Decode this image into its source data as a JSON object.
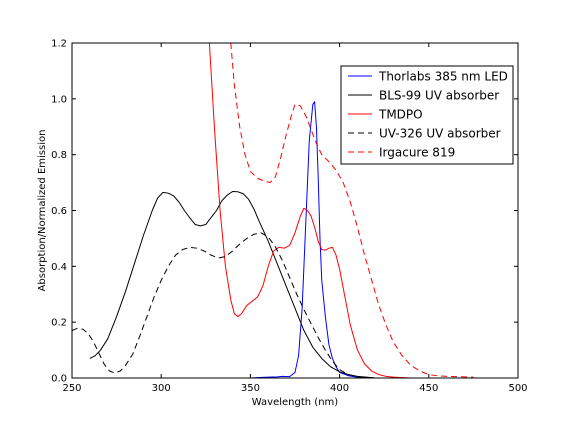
{
  "chart_data": {
    "type": "line",
    "xlabel": "Wavelength (nm)",
    "ylabel": "Absorption/Normalized Emission",
    "xlim": [
      250,
      500
    ],
    "ylim": [
      0.0,
      1.2
    ],
    "xticks": [
      250,
      300,
      350,
      400,
      450,
      500
    ],
    "xtick_labels": [
      "250",
      "300",
      "350",
      "400",
      "450",
      "500"
    ],
    "yticks": [
      0.0,
      0.2,
      0.4,
      0.6,
      0.8,
      1.0,
      1.2
    ],
    "ytick_labels": [
      "0.0",
      "0.2",
      "0.4",
      "0.6",
      "0.8",
      "1.0",
      "1.2"
    ],
    "grid": false,
    "legend_position": "upper-right",
    "series": [
      {
        "name": "Thorlabs 385 nm LED",
        "color": "#0000ff",
        "dash": "solid",
        "points": [
          [
            350,
            0.0
          ],
          [
            355,
            0.002
          ],
          [
            360,
            0.003
          ],
          [
            365,
            0.004
          ],
          [
            368,
            0.006
          ],
          [
            372,
            0.005
          ],
          [
            375,
            0.02
          ],
          [
            377,
            0.08
          ],
          [
            379,
            0.25
          ],
          [
            381,
            0.55
          ],
          [
            383,
            0.85
          ],
          [
            385,
            0.98
          ],
          [
            386,
            0.99
          ],
          [
            387,
            0.9
          ],
          [
            388,
            0.72
          ],
          [
            389,
            0.5
          ],
          [
            390,
            0.35
          ],
          [
            392,
            0.22
          ],
          [
            394,
            0.12
          ],
          [
            396,
            0.07
          ],
          [
            398,
            0.04
          ],
          [
            400,
            0.02
          ],
          [
            405,
            0.008
          ],
          [
            410,
            0.003
          ],
          [
            415,
            0.001
          ],
          [
            420,
            0.0
          ]
        ]
      },
      {
        "name": "BLS-99 UV absorber",
        "color": "#000000",
        "dash": "solid",
        "points": [
          [
            260,
            0.07
          ],
          [
            263,
            0.08
          ],
          [
            266,
            0.1
          ],
          [
            270,
            0.14
          ],
          [
            275,
            0.22
          ],
          [
            280,
            0.31
          ],
          [
            285,
            0.41
          ],
          [
            290,
            0.51
          ],
          [
            295,
            0.6
          ],
          [
            298,
            0.645
          ],
          [
            301,
            0.665
          ],
          [
            304,
            0.662
          ],
          [
            307,
            0.652
          ],
          [
            310,
            0.63
          ],
          [
            313,
            0.6
          ],
          [
            316,
            0.574
          ],
          [
            319,
            0.55
          ],
          [
            322,
            0.545
          ],
          [
            325,
            0.55
          ],
          [
            328,
            0.575
          ],
          [
            331,
            0.6
          ],
          [
            334,
            0.635
          ],
          [
            337,
            0.655
          ],
          [
            340,
            0.668
          ],
          [
            343,
            0.667
          ],
          [
            346,
            0.66
          ],
          [
            349,
            0.64
          ],
          [
            352,
            0.605
          ],
          [
            355,
            0.56
          ],
          [
            360,
            0.49
          ],
          [
            365,
            0.41
          ],
          [
            370,
            0.33
          ],
          [
            375,
            0.25
          ],
          [
            380,
            0.17
          ],
          [
            385,
            0.11
          ],
          [
            390,
            0.07
          ],
          [
            395,
            0.04
          ],
          [
            400,
            0.022
          ],
          [
            405,
            0.012
          ],
          [
            410,
            0.006
          ],
          [
            415,
            0.003
          ],
          [
            420,
            0.0
          ]
        ]
      },
      {
        "name": "TMDPO",
        "color": "#ff0000",
        "dash": "solid",
        "points": [
          [
            327,
            1.2
          ],
          [
            330,
            0.88
          ],
          [
            333,
            0.6
          ],
          [
            336,
            0.4
          ],
          [
            339,
            0.28
          ],
          [
            341,
            0.23
          ],
          [
            343,
            0.22
          ],
          [
            345,
            0.23
          ],
          [
            348,
            0.26
          ],
          [
            351,
            0.275
          ],
          [
            354,
            0.29
          ],
          [
            357,
            0.33
          ],
          [
            360,
            0.4
          ],
          [
            363,
            0.455
          ],
          [
            366,
            0.468
          ],
          [
            369,
            0.465
          ],
          [
            372,
            0.475
          ],
          [
            375,
            0.52
          ],
          [
            378,
            0.58
          ],
          [
            380,
            0.608
          ],
          [
            382,
            0.6
          ],
          [
            384,
            0.58
          ],
          [
            386,
            0.54
          ],
          [
            388,
            0.49
          ],
          [
            390,
            0.46
          ],
          [
            392,
            0.458
          ],
          [
            394,
            0.465
          ],
          [
            396,
            0.468
          ],
          [
            398,
            0.44
          ],
          [
            400,
            0.39
          ],
          [
            403,
            0.29
          ],
          [
            406,
            0.19
          ],
          [
            410,
            0.1
          ],
          [
            414,
            0.05
          ],
          [
            418,
            0.025
          ],
          [
            422,
            0.012
          ],
          [
            426,
            0.006
          ],
          [
            430,
            0.003
          ],
          [
            440,
            0.0
          ]
        ]
      },
      {
        "name": "UV-326 UV absorber",
        "color": "#000000",
        "dash": "dashed",
        "points": [
          [
            250,
            0.17
          ],
          [
            253,
            0.178
          ],
          [
            256,
            0.175
          ],
          [
            259,
            0.16
          ],
          [
            262,
            0.13
          ],
          [
            265,
            0.09
          ],
          [
            268,
            0.05
          ],
          [
            271,
            0.025
          ],
          [
            274,
            0.018
          ],
          [
            277,
            0.025
          ],
          [
            280,
            0.045
          ],
          [
            284,
            0.085
          ],
          [
            288,
            0.15
          ],
          [
            292,
            0.22
          ],
          [
            296,
            0.29
          ],
          [
            300,
            0.35
          ],
          [
            304,
            0.4
          ],
          [
            308,
            0.44
          ],
          [
            312,
            0.46
          ],
          [
            316,
            0.468
          ],
          [
            320,
            0.465
          ],
          [
            324,
            0.455
          ],
          [
            328,
            0.44
          ],
          [
            332,
            0.43
          ],
          [
            336,
            0.435
          ],
          [
            340,
            0.455
          ],
          [
            344,
            0.48
          ],
          [
            348,
            0.5
          ],
          [
            352,
            0.515
          ],
          [
            356,
            0.52
          ],
          [
            360,
            0.505
          ],
          [
            364,
            0.47
          ],
          [
            368,
            0.42
          ],
          [
            372,
            0.36
          ],
          [
            376,
            0.3
          ],
          [
            380,
            0.245
          ],
          [
            384,
            0.195
          ],
          [
            388,
            0.145
          ],
          [
            392,
            0.1
          ],
          [
            396,
            0.06
          ],
          [
            400,
            0.03
          ],
          [
            405,
            0.012
          ],
          [
            410,
            0.004
          ],
          [
            420,
            0.0
          ]
        ]
      },
      {
        "name": "Irgacure 819",
        "color": "#ff0000",
        "dash": "dashed",
        "points": [
          [
            339,
            1.2
          ],
          [
            341,
            1.05
          ],
          [
            344,
            0.9
          ],
          [
            347,
            0.8
          ],
          [
            350,
            0.74
          ],
          [
            354,
            0.715
          ],
          [
            358,
            0.705
          ],
          [
            361,
            0.7
          ],
          [
            364,
            0.72
          ],
          [
            367,
            0.79
          ],
          [
            370,
            0.87
          ],
          [
            373,
            0.94
          ],
          [
            375,
            0.98
          ],
          [
            378,
            0.975
          ],
          [
            381,
            0.94
          ],
          [
            384,
            0.89
          ],
          [
            387,
            0.84
          ],
          [
            390,
            0.8
          ],
          [
            394,
            0.775
          ],
          [
            398,
            0.745
          ],
          [
            402,
            0.7
          ],
          [
            406,
            0.63
          ],
          [
            410,
            0.54
          ],
          [
            414,
            0.44
          ],
          [
            418,
            0.35
          ],
          [
            422,
            0.26
          ],
          [
            426,
            0.19
          ],
          [
            430,
            0.13
          ],
          [
            435,
            0.08
          ],
          [
            440,
            0.045
          ],
          [
            445,
            0.025
          ],
          [
            450,
            0.012
          ],
          [
            455,
            0.008
          ],
          [
            460,
            0.006
          ],
          [
            465,
            0.005
          ],
          [
            470,
            0.004
          ],
          [
            475,
            0.003
          ]
        ]
      }
    ]
  }
}
